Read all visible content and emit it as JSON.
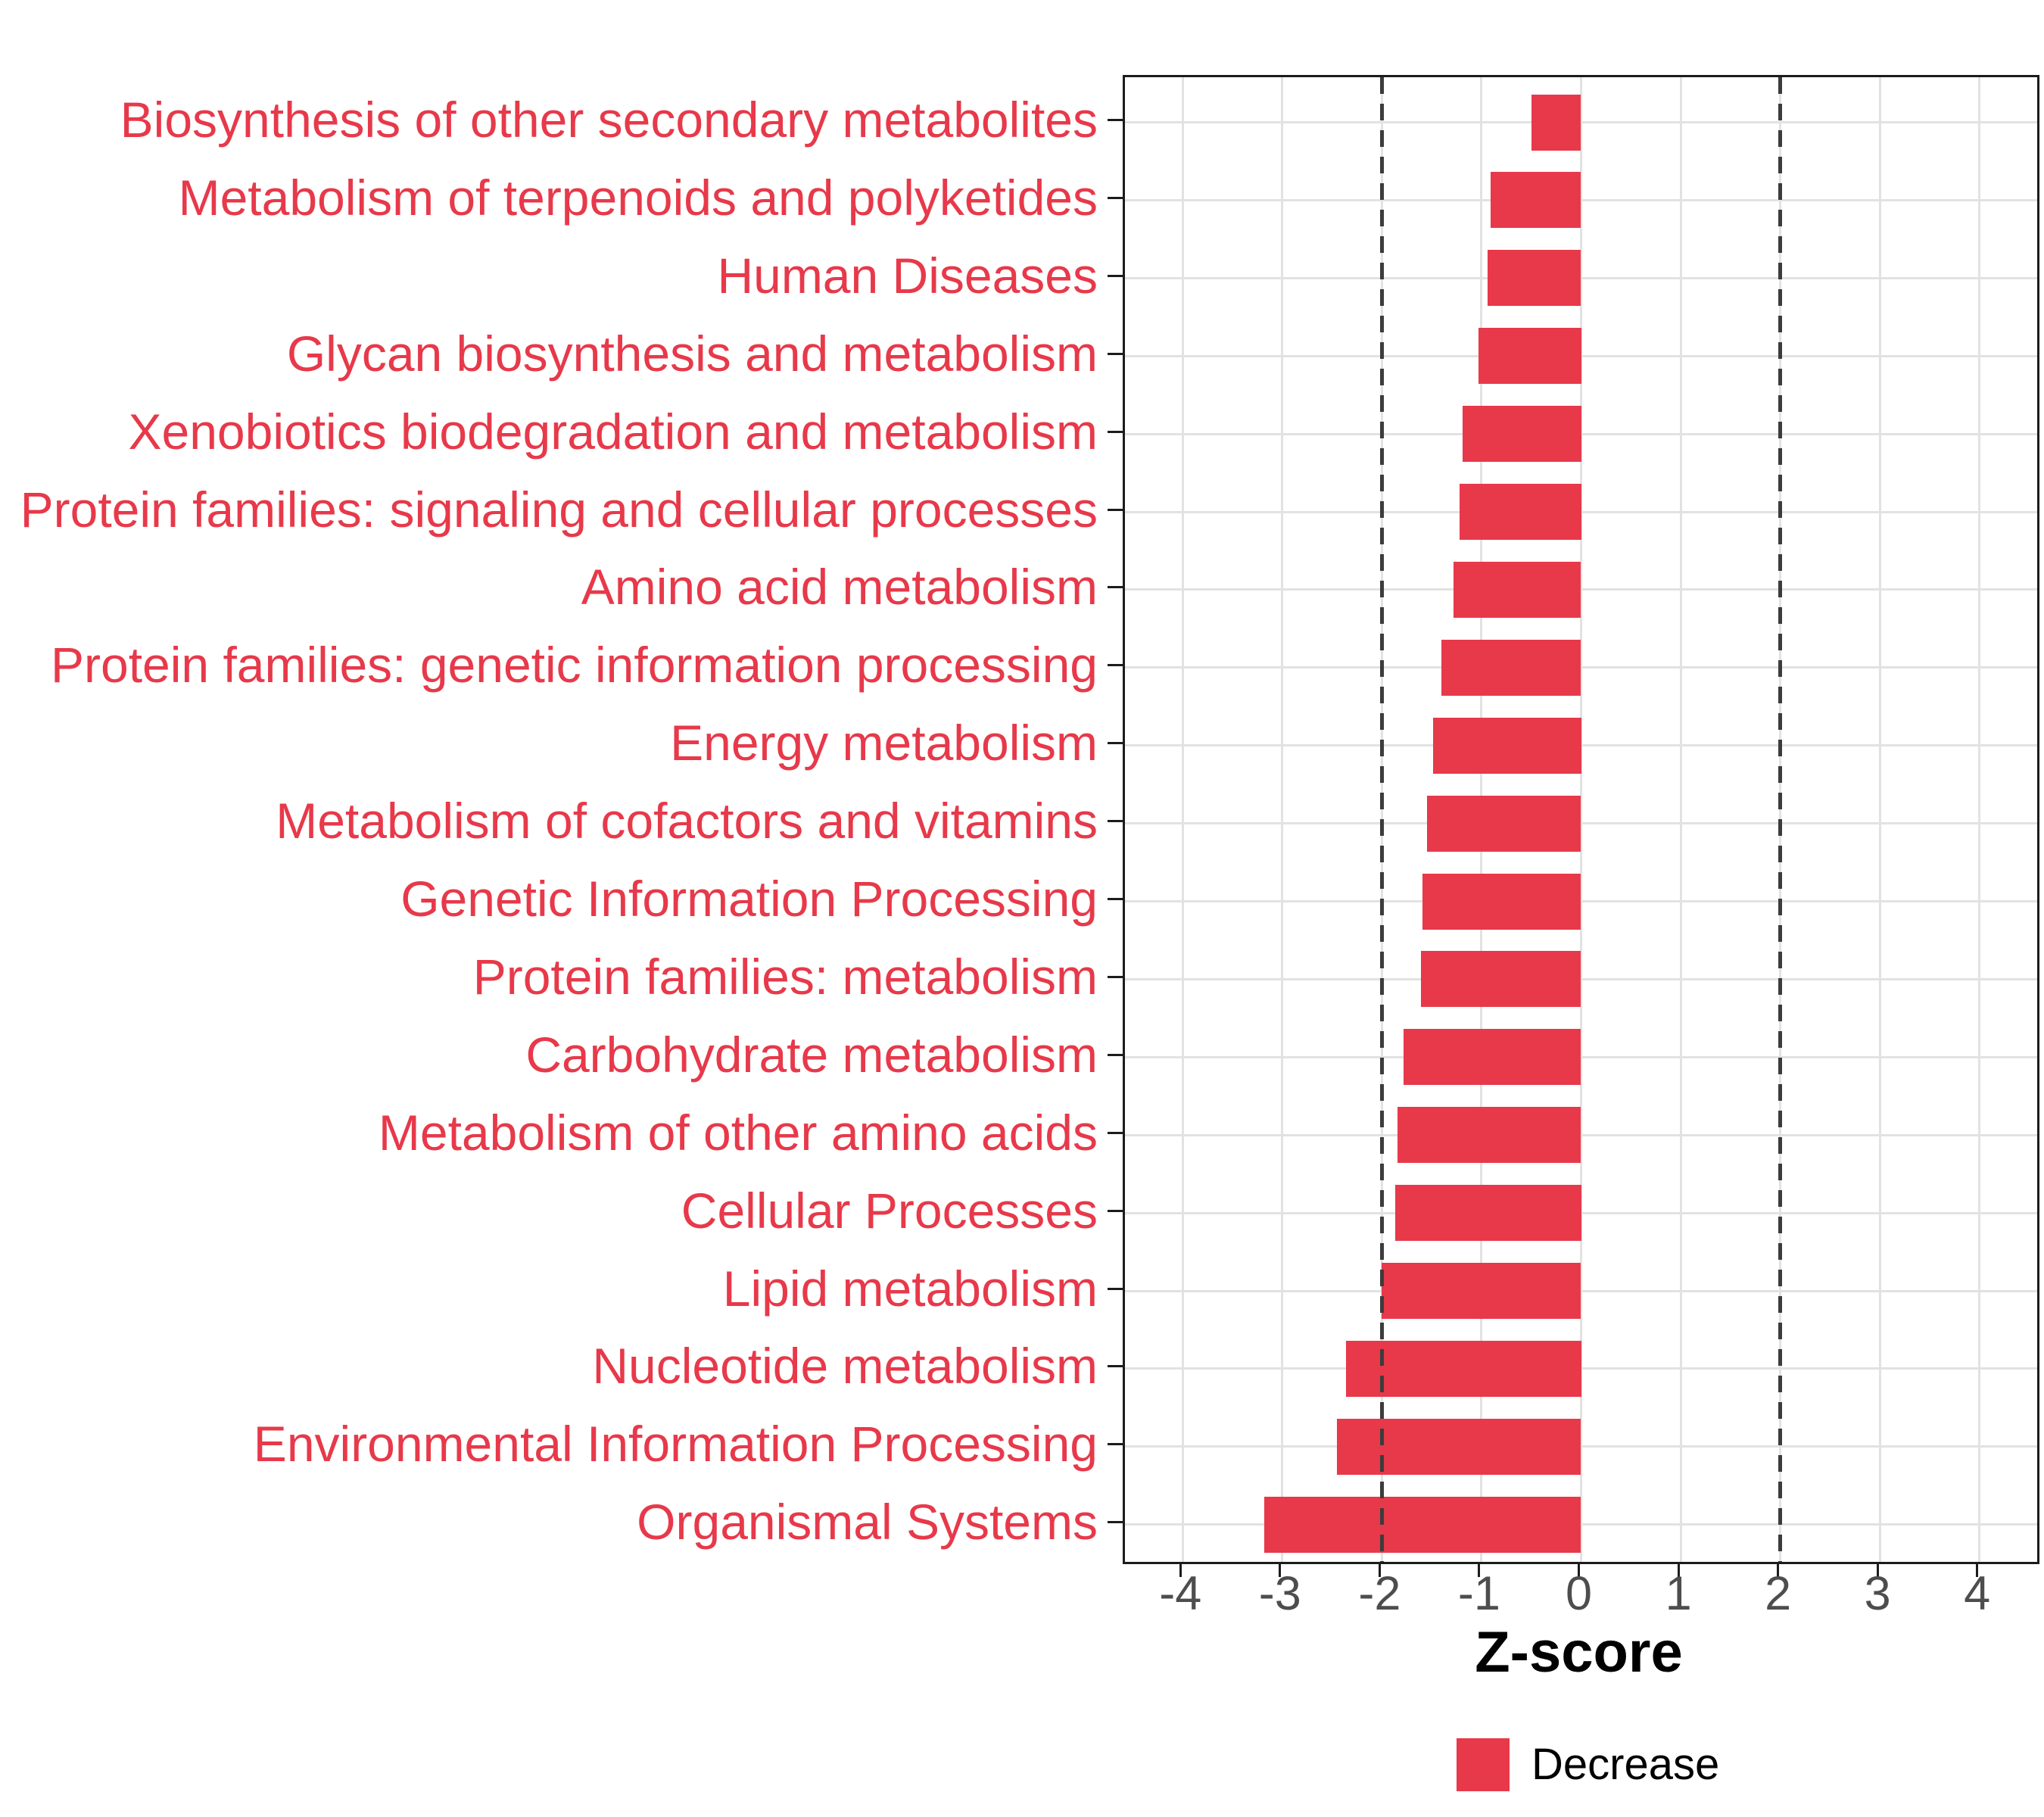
{
  "figure": {
    "background": "#ffffff"
  },
  "chart_data": {
    "type": "bar",
    "orientation": "horizontal",
    "title": "",
    "xlabel": "Z-score",
    "ylabel": "",
    "categories": [
      "Biosynthesis of other secondary metabolites",
      "Metabolism of terpenoids and polyketides",
      "Human Diseases",
      "Glycan biosynthesis and metabolism",
      "Xenobiotics biodegradation and metabolism",
      "Protein families: signaling and cellular processes",
      "Amino acid metabolism",
      "Protein families: genetic information processing",
      "Energy metabolism",
      "Metabolism of cofactors and vitamins",
      "Genetic Information Processing",
      "Protein families: metabolism",
      "Carbohydrate metabolism",
      "Metabolism of other amino acids",
      "Cellular Processes",
      "Lipid metabolism",
      "Nucleotide metabolism",
      "Environmental Information Processing",
      "Organismal Systems"
    ],
    "series": [
      {
        "name": "Decrease",
        "color": "#e7394a",
        "values": [
          -0.5,
          -0.91,
          -0.94,
          -1.03,
          -1.19,
          -1.22,
          -1.28,
          -1.4,
          -1.49,
          -1.55,
          -1.59,
          -1.61,
          -1.78,
          -1.84,
          -1.87,
          -2.0,
          -2.36,
          -2.45,
          -3.18
        ]
      }
    ],
    "x_ticks": [
      -4,
      -3,
      -2,
      -1,
      0,
      1,
      2,
      3,
      4
    ],
    "x_tick_labels": [
      "-4",
      "-3",
      "-2",
      "-1",
      "0",
      "1",
      "2",
      "3",
      "4"
    ],
    "xlim": [
      -4.58,
      4.58
    ],
    "reference_lines": [
      -2,
      2
    ],
    "grid": true,
    "legend": {
      "position": "bottom",
      "entries": [
        {
          "label": "Decrease",
          "color": "#e7394a"
        }
      ]
    }
  },
  "colors": {
    "bar": "#e7394a",
    "category_label": "#e7394a",
    "grid": "#e2e2e2",
    "axis_text": "#4d4d4d",
    "reference_line": "#3c3c3c",
    "panel_border": "#1c1c1c",
    "axis_title": "#000000",
    "legend_text": "#000000"
  }
}
